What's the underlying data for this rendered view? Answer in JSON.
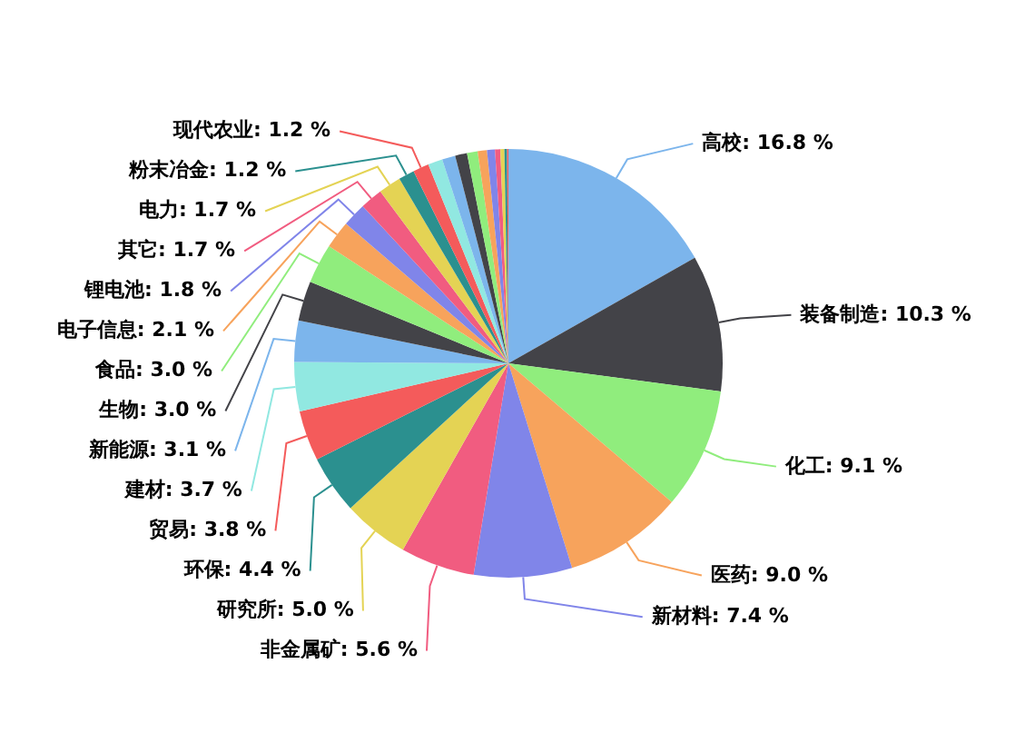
{
  "chart_data": {
    "type": "pie",
    "categories": [
      "高校",
      "装备制造",
      "化工",
      "医药",
      "新材料",
      "非金属矿",
      "研究所",
      "环保",
      "贸易",
      "建材",
      "新能源",
      "生物",
      "食品",
      "电子信息",
      "锂电池",
      "其它",
      "电力",
      "粉末冶金",
      "现代农业",
      null,
      null,
      null,
      null,
      null,
      null,
      null,
      null,
      null,
      null
    ],
    "values": [
      16.8,
      10.3,
      9.1,
      9.0,
      7.4,
      5.6,
      5.0,
      4.4,
      3.8,
      3.7,
      3.1,
      3.0,
      3.0,
      2.1,
      1.8,
      1.7,
      1.7,
      1.2,
      1.2,
      1.1,
      1.0,
      0.9,
      0.8,
      0.7,
      0.6,
      0.4,
      0.3,
      0.2,
      0.1
    ],
    "colors": [
      "#7cb5ec",
      "#434348",
      "#90ed7d",
      "#f7a35c",
      "#8085e9",
      "#f15c80",
      "#e4d354",
      "#2b908f",
      "#f45b5b",
      "#91e8e1",
      "#7cb5ec",
      "#434348",
      "#90ed7d",
      "#f7a35c",
      "#8085e9",
      "#f15c80",
      "#e4d354",
      "#2b908f",
      "#f45b5b",
      "#91e8e1",
      "#7cb5ec",
      "#434348",
      "#90ed7d",
      "#f7a35c",
      "#8085e9",
      "#f15c80",
      "#e4d354",
      "#2b908f",
      "#f45b5b"
    ],
    "value_labels": [
      "16.8 %",
      "10.3 %",
      "9.1 %",
      "9.0 %",
      "7.4 %",
      "5.6 %",
      "5.0 %",
      "4.4 %",
      "3.8 %",
      "3.7 %",
      "3.1 %",
      "3.0 %",
      "3.0 %",
      "2.1 %",
      "1.8 %",
      "1.7 %",
      "1.7 %",
      "1.2 %",
      "1.2 %",
      null,
      null,
      null,
      null,
      null,
      null,
      null,
      null,
      null,
      null
    ]
  }
}
